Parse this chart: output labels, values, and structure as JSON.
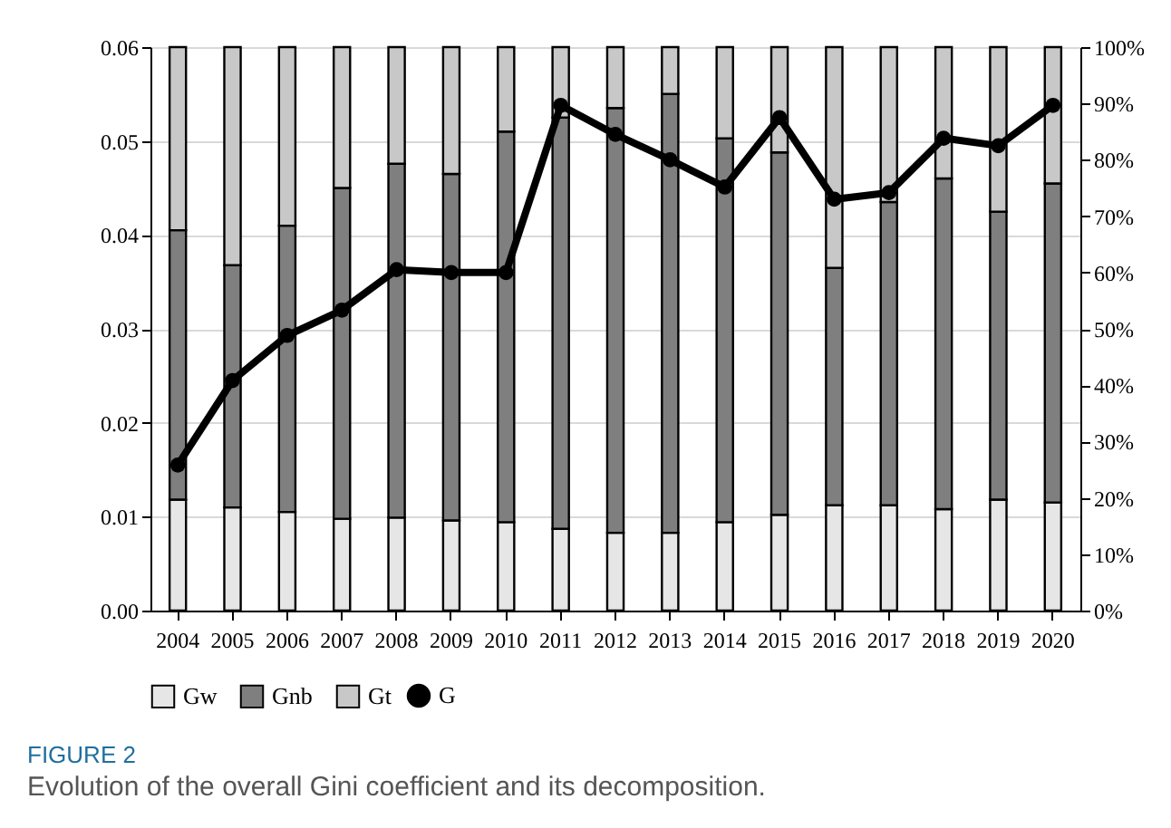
{
  "chart_data": {
    "type": "bar",
    "stacked": true,
    "categories": [
      "2004",
      "2005",
      "2006",
      "2007",
      "2008",
      "2009",
      "2010",
      "2011",
      "2012",
      "2013",
      "2014",
      "2015",
      "2016",
      "2017",
      "2018",
      "2019",
      "2020"
    ],
    "series": [
      {
        "name": "Gw",
        "axis": "y2",
        "color": "#e6e6e6",
        "values": [
          19.7,
          18.3,
          17.5,
          16.3,
          16.5,
          16.0,
          15.7,
          14.5,
          13.8,
          13.8,
          15.7,
          17.0,
          18.7,
          18.7,
          18.0,
          19.7,
          19.2
        ]
      },
      {
        "name": "Gnb",
        "axis": "y2",
        "color": "#7f7f7f",
        "values": [
          47.8,
          43.0,
          50.8,
          58.7,
          62.8,
          61.5,
          69.3,
          73.0,
          75.4,
          77.9,
          68.1,
          64.3,
          42.1,
          53.8,
          58.7,
          51.1,
          56.6
        ]
      },
      {
        "name": "Gt",
        "axis": "y2",
        "color": "#c8c8c8",
        "values": [
          32.5,
          38.7,
          31.7,
          25.0,
          20.7,
          22.5,
          15.0,
          12.5,
          10.8,
          8.3,
          16.2,
          18.7,
          39.2,
          27.5,
          23.3,
          29.2,
          24.2
        ]
      },
      {
        "name": "G",
        "type": "line",
        "axis": "y",
        "color": "#000000",
        "marker": "circle",
        "line_style": "solid",
        "values": [
          0.0155,
          0.0245,
          0.0293,
          0.032,
          0.0363,
          0.036,
          0.036,
          0.0538,
          0.0507,
          0.048,
          0.0451,
          0.0525,
          0.0438,
          0.0445,
          0.0503,
          0.0495,
          0.0538
        ]
      }
    ],
    "ylim": [
      0,
      0.06
    ],
    "yticks": [
      {
        "value": 0,
        "label": "0.00"
      },
      {
        "value": 0.01,
        "label": "0.01"
      },
      {
        "value": 0.02,
        "label": "0.02"
      },
      {
        "value": 0.03,
        "label": "0.03"
      },
      {
        "value": 0.04,
        "label": "0.04"
      },
      {
        "value": 0.05,
        "label": "0.05"
      },
      {
        "value": 0.06,
        "label": "0.06"
      }
    ],
    "y2lim": [
      0,
      100
    ],
    "y2ticks": [
      {
        "value": 0,
        "label": "0%"
      },
      {
        "value": 10,
        "label": "10%"
      },
      {
        "value": 20,
        "label": "20%"
      },
      {
        "value": 30,
        "label": "30%"
      },
      {
        "value": 40,
        "label": "40%"
      },
      {
        "value": 50,
        "label": "50%"
      },
      {
        "value": 60,
        "label": "60%"
      },
      {
        "value": 70,
        "label": "70%"
      },
      {
        "value": 80,
        "label": "80%"
      },
      {
        "value": 90,
        "label": "90%"
      },
      {
        "value": 100,
        "label": "100%"
      }
    ],
    "grid": "y",
    "legend": "bottom",
    "annotations": [
      "FIGURE 2",
      "Evolution of the overall Gini coefficient and its decomposition."
    ]
  }
}
